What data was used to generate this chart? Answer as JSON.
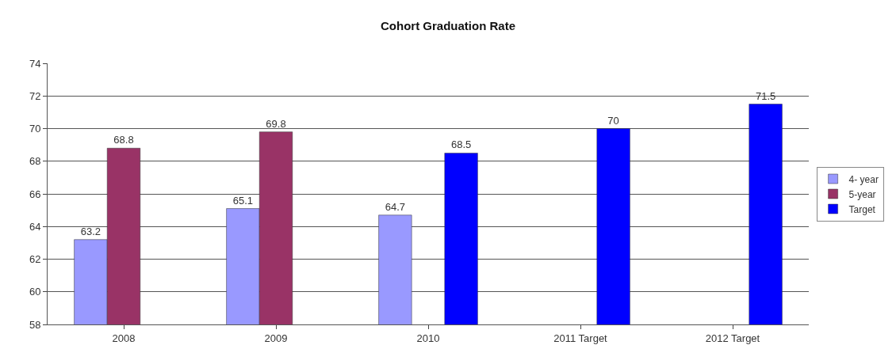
{
  "chart_data": {
    "type": "bar",
    "title": "Cohort Graduation Rate",
    "categories": [
      "2008",
      "2009",
      "2010",
      "2011 Target",
      "2012 Target"
    ],
    "series": [
      {
        "name": "4- year",
        "color": "#9999ff",
        "values": [
          63.2,
          65.1,
          64.7,
          null,
          null
        ]
      },
      {
        "name": "5-year",
        "color": "#993366",
        "values": [
          68.8,
          69.8,
          null,
          null,
          null
        ]
      },
      {
        "name": "Target",
        "color": "#0000ff",
        "values": [
          null,
          null,
          68.5,
          70,
          71.5
        ]
      }
    ],
    "ylim": [
      58,
      74
    ],
    "yticks": [
      58,
      60,
      62,
      64,
      66,
      68,
      70,
      72,
      74
    ],
    "grid": "y",
    "legend": "right",
    "data_labels": true
  }
}
